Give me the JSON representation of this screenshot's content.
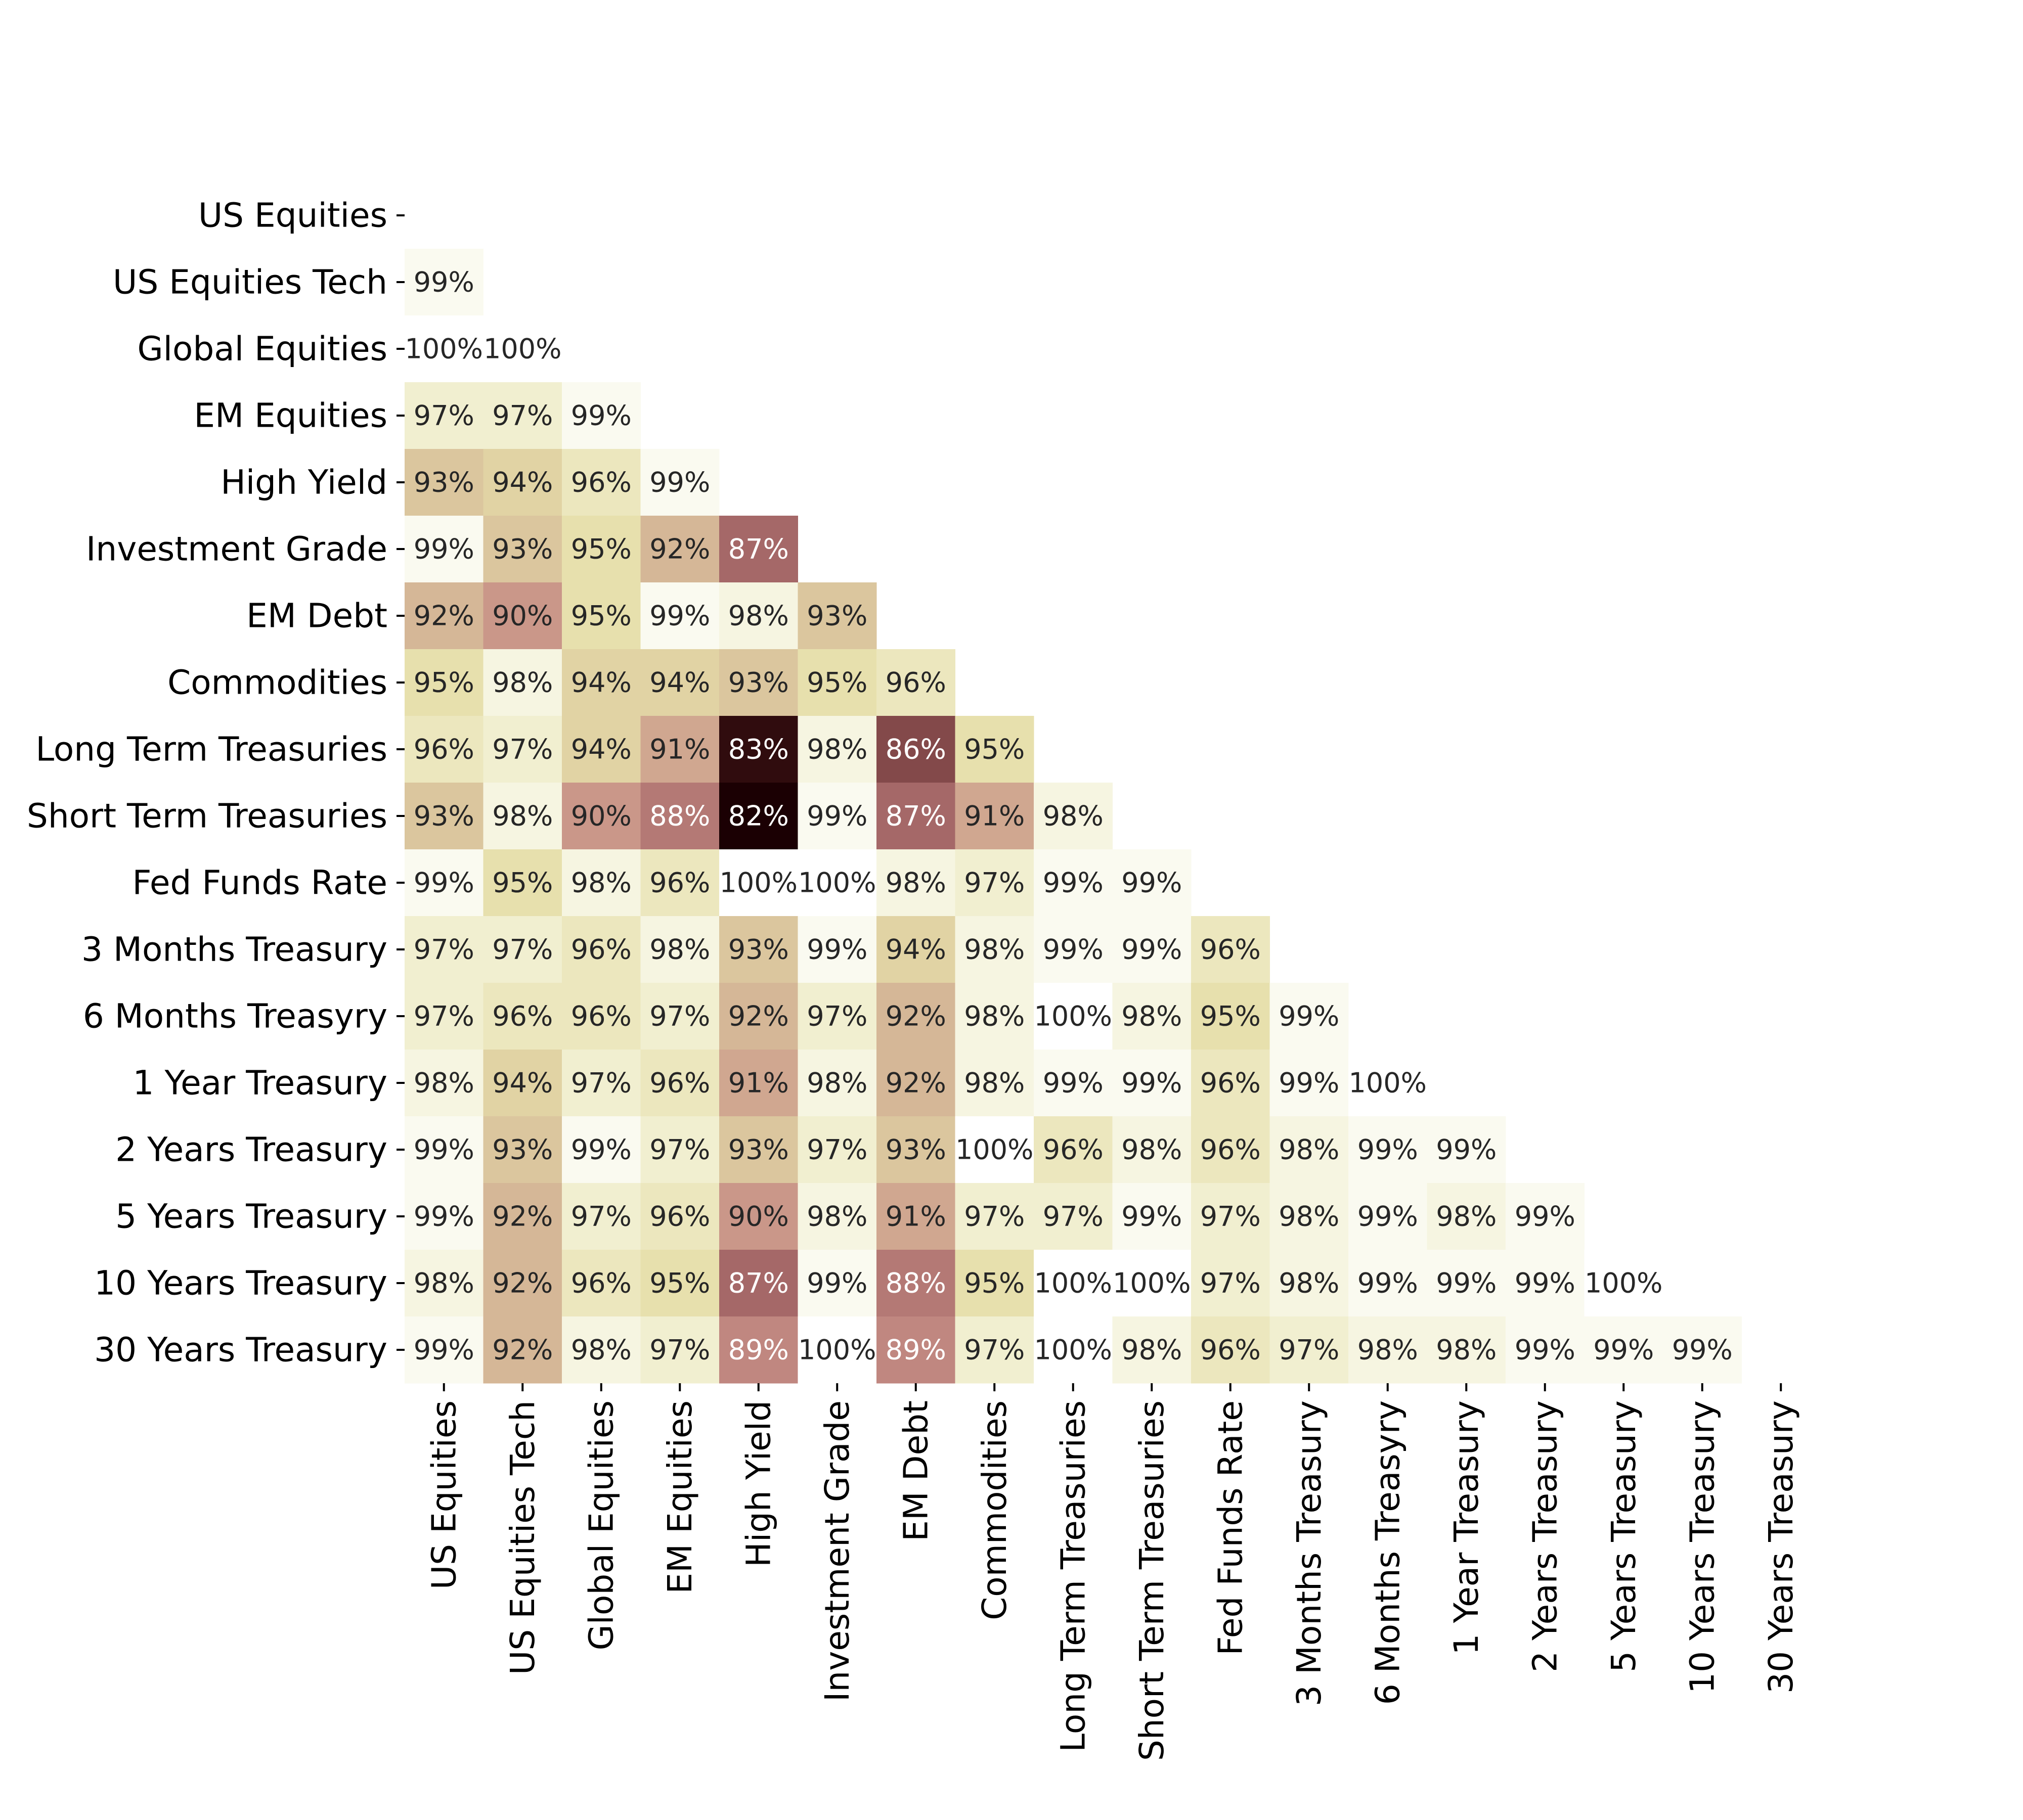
{
  "chart_data": {
    "type": "heatmap",
    "title": "",
    "xlabel": "",
    "ylabel": "",
    "value_format": "percent",
    "mask": "lower-triangle",
    "colormap": [
      "#ffffff",
      "#f3f2d8",
      "#e6dfaa",
      "#d7bc99",
      "#c89287",
      "#aa6c6c",
      "#521e1f",
      "#1b0003"
    ],
    "value_range": [
      0.82,
      1.0
    ],
    "row_labels": [
      "US Equities",
      "US Equities Tech",
      "Global Equities",
      "EM Equities",
      "High Yield",
      "Investment Grade",
      "EM Debt",
      "Commodities",
      "Long Term Treasuries",
      "Short Term Treasuries",
      "Fed Funds Rate",
      "3 Months Treasury",
      "6 Months Treasyry",
      "1 Year Treasury",
      "2 Years Treasury",
      "5 Years Treasury",
      "10 Years Treasury",
      "30 Years Treasury"
    ],
    "col_labels": [
      "US Equities",
      "US Equities Tech",
      "Global Equities",
      "EM Equities",
      "High Yield",
      "Investment Grade",
      "EM Debt",
      "Commodities",
      "Long Term Treasuries",
      "Short Term Treasuries",
      "Fed Funds Rate",
      "3 Months Treasury",
      "6 Months Treasyry",
      "1 Year Treasury",
      "2 Years Treasury",
      "5 Years Treasury",
      "10 Years Treasury",
      "30 Years Treasury"
    ],
    "values": [
      [],
      [
        0.99
      ],
      [
        1.0,
        1.0
      ],
      [
        0.97,
        0.97,
        0.99
      ],
      [
        0.93,
        0.94,
        0.96,
        0.99
      ],
      [
        0.99,
        0.93,
        0.95,
        0.92,
        0.87
      ],
      [
        0.92,
        0.9,
        0.95,
        0.99,
        0.98,
        0.93
      ],
      [
        0.95,
        0.98,
        0.94,
        0.94,
        0.93,
        0.95,
        0.96
      ],
      [
        0.96,
        0.97,
        0.94,
        0.91,
        0.83,
        0.98,
        0.86,
        0.95
      ],
      [
        0.93,
        0.98,
        0.9,
        0.88,
        0.82,
        0.99,
        0.87,
        0.91,
        0.98
      ],
      [
        0.99,
        0.95,
        0.98,
        0.96,
        1.0,
        1.0,
        0.98,
        0.97,
        0.99,
        0.99
      ],
      [
        0.97,
        0.97,
        0.96,
        0.98,
        0.93,
        0.99,
        0.94,
        0.98,
        0.99,
        0.99,
        0.96
      ],
      [
        0.97,
        0.96,
        0.96,
        0.97,
        0.92,
        0.97,
        0.92,
        0.98,
        1.0,
        0.98,
        0.95,
        0.99
      ],
      [
        0.98,
        0.94,
        0.97,
        0.96,
        0.91,
        0.98,
        0.92,
        0.98,
        0.99,
        0.99,
        0.96,
        0.99,
        1.0
      ],
      [
        0.99,
        0.93,
        0.99,
        0.97,
        0.93,
        0.97,
        0.93,
        1.0,
        0.96,
        0.98,
        0.96,
        0.98,
        0.99,
        0.99
      ],
      [
        0.99,
        0.92,
        0.97,
        0.96,
        0.9,
        0.98,
        0.91,
        0.97,
        0.97,
        0.99,
        0.97,
        0.98,
        0.99,
        0.98,
        0.99
      ],
      [
        0.98,
        0.92,
        0.96,
        0.95,
        0.87,
        0.99,
        0.88,
        0.95,
        1.0,
        1.0,
        0.97,
        0.98,
        0.99,
        0.99,
        0.99,
        1.0
      ],
      [
        0.99,
        0.92,
        0.98,
        0.97,
        0.89,
        1.0,
        0.89,
        0.97,
        1.0,
        0.98,
        0.96,
        0.97,
        0.98,
        0.98,
        0.99,
        0.99,
        0.99
      ]
    ],
    "labels": [
      [],
      [
        "99%"
      ],
      [
        "100%",
        "100%"
      ],
      [
        "97%",
        "97%",
        "99%"
      ],
      [
        "93%",
        "94%",
        "96%",
        "99%"
      ],
      [
        "99%",
        "93%",
        "95%",
        "92%",
        "87%"
      ],
      [
        "92%",
        "90%",
        "95%",
        "99%",
        "98%",
        "93%"
      ],
      [
        "95%",
        "98%",
        "94%",
        "94%",
        "93%",
        "95%",
        "96%"
      ],
      [
        "96%",
        "97%",
        "94%",
        "91%",
        "83%",
        "98%",
        "86%",
        "95%"
      ],
      [
        "93%",
        "98%",
        "90%",
        "88%",
        "82%",
        "99%",
        "87%",
        "91%",
        "98%"
      ],
      [
        "99%",
        "95%",
        "98%",
        "96%",
        "100%",
        "100%",
        "98%",
        "97%",
        "99%",
        "99%"
      ],
      [
        "97%",
        "97%",
        "96%",
        "98%",
        "93%",
        "99%",
        "94%",
        "98%",
        "99%",
        "99%",
        "96%"
      ],
      [
        "97%",
        "96%",
        "96%",
        "97%",
        "92%",
        "97%",
        "92%",
        "98%",
        "100%",
        "98%",
        "95%",
        "99%"
      ],
      [
        "98%",
        "94%",
        "97%",
        "96%",
        "91%",
        "98%",
        "92%",
        "98%",
        "99%",
        "99%",
        "96%",
        "99%",
        "100%"
      ],
      [
        "99%",
        "93%",
        "99%",
        "97%",
        "93%",
        "97%",
        "93%",
        "100%",
        "96%",
        "98%",
        "96%",
        "98%",
        "99%",
        "99%"
      ],
      [
        "99%",
        "92%",
        "97%",
        "96%",
        "90%",
        "98%",
        "91%",
        "97%",
        "97%",
        "99%",
        "97%",
        "98%",
        "99%",
        "98%",
        "99%"
      ],
      [
        "98%",
        "92%",
        "96%",
        "95%",
        "87%",
        "99%",
        "88%",
        "95%",
        "100%",
        "100%",
        "97%",
        "98%",
        "99%",
        "99%",
        "99%",
        "100%"
      ],
      [
        "99%",
        "92%",
        "98%",
        "97%",
        "89%",
        "100%",
        "89%",
        "97%",
        "100%",
        "98%",
        "96%",
        "97%",
        "98%",
        "98%",
        "99%",
        "99%",
        "99%"
      ]
    ]
  }
}
